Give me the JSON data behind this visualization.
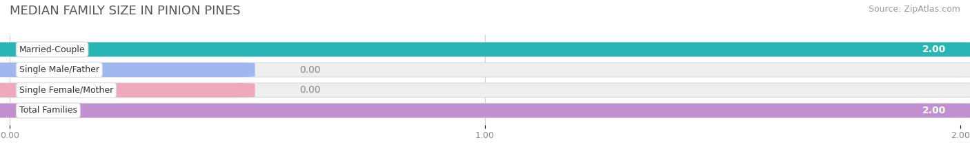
{
  "title": "MEDIAN FAMILY SIZE IN PINION PINES",
  "source": "Source: ZipAtlas.com",
  "categories": [
    "Married-Couple",
    "Single Male/Father",
    "Single Female/Mother",
    "Total Families"
  ],
  "values": [
    2.0,
    0.0,
    0.0,
    2.0
  ],
  "bar_colors": [
    "#29b5b5",
    "#a0b8f0",
    "#f0a8bc",
    "#c090d0"
  ],
  "xlim": [
    0,
    2.0
  ],
  "xticks": [
    0.0,
    1.0,
    2.0
  ],
  "xtick_labels": [
    "0.00",
    "1.00",
    "2.00"
  ],
  "bg_color": "#ffffff",
  "bar_bg_color": "#eeeeee",
  "bar_bg_edge_color": "#dddddd",
  "title_fontsize": 13,
  "source_fontsize": 9,
  "bar_height": 0.62,
  "value_label_fontsize": 10,
  "cat_label_fontsize": 9,
  "grid_color": "#cccccc",
  "title_color": "#555555",
  "source_color": "#999999",
  "tick_color": "#888888",
  "value_color_inside": "#ffffff",
  "value_color_outside": "#888888"
}
